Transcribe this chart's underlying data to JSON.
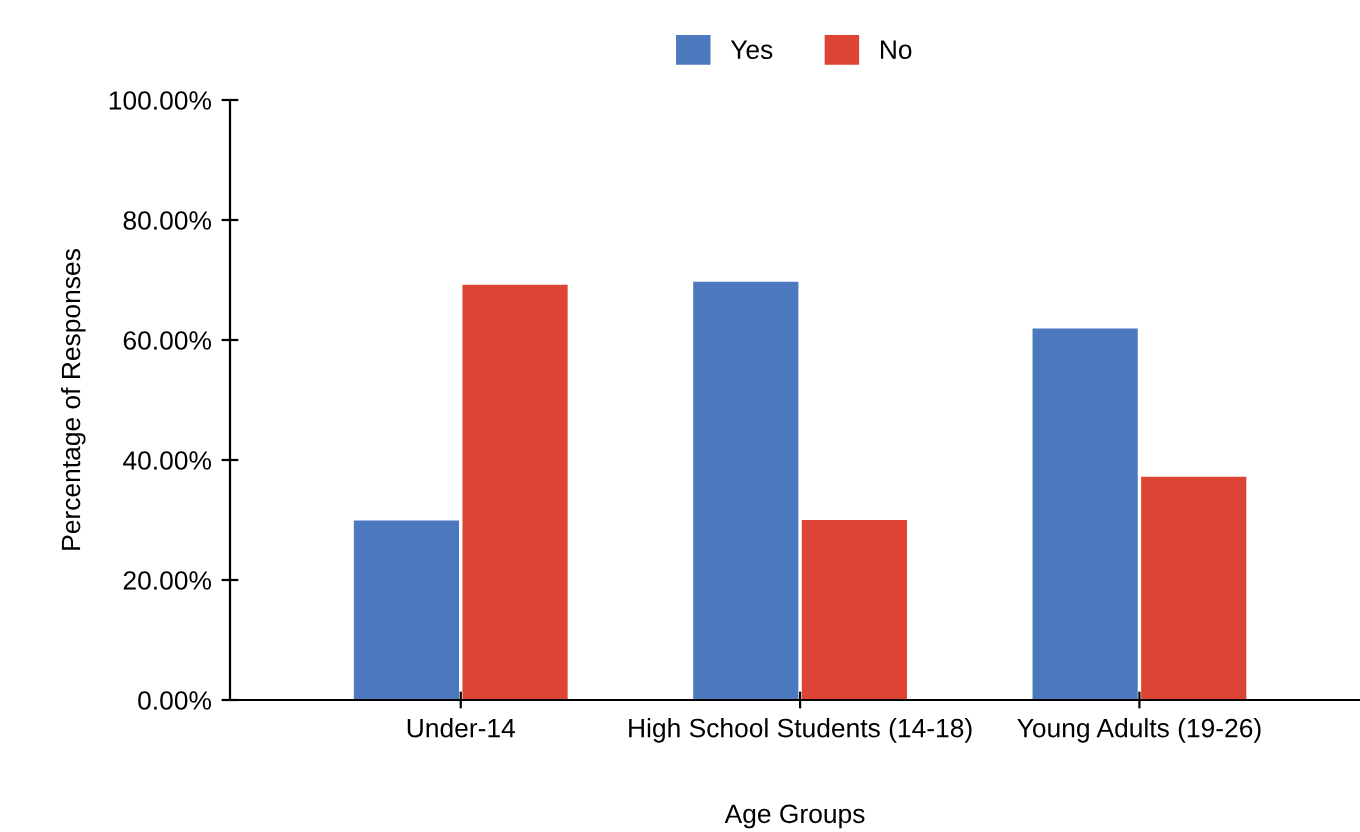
{
  "chart_data": {
    "type": "bar",
    "xlabel": "Age Groups",
    "ylabel": "Percentage of Responses",
    "categories": [
      "Under-14",
      "High School Students (14-18)",
      "Young Adults (19-26)"
    ],
    "series": [
      {
        "name": "Yes",
        "color": "#4c78be",
        "values": [
          29.9,
          69.7,
          61.9
        ]
      },
      {
        "name": "No",
        "color": "#de4436",
        "values": [
          69.2,
          30.0,
          37.2
        ]
      }
    ],
    "ylim": [
      0,
      100
    ],
    "yticks": [
      {
        "value": 0,
        "label": "0.00%"
      },
      {
        "value": 20,
        "label": "20.00%"
      },
      {
        "value": 40,
        "label": "40.00%"
      },
      {
        "value": 60,
        "label": "60.00%"
      },
      {
        "value": 80,
        "label": "80.00%"
      },
      {
        "value": 100,
        "label": "100.00%"
      }
    ],
    "grid": false,
    "legend": "top"
  }
}
